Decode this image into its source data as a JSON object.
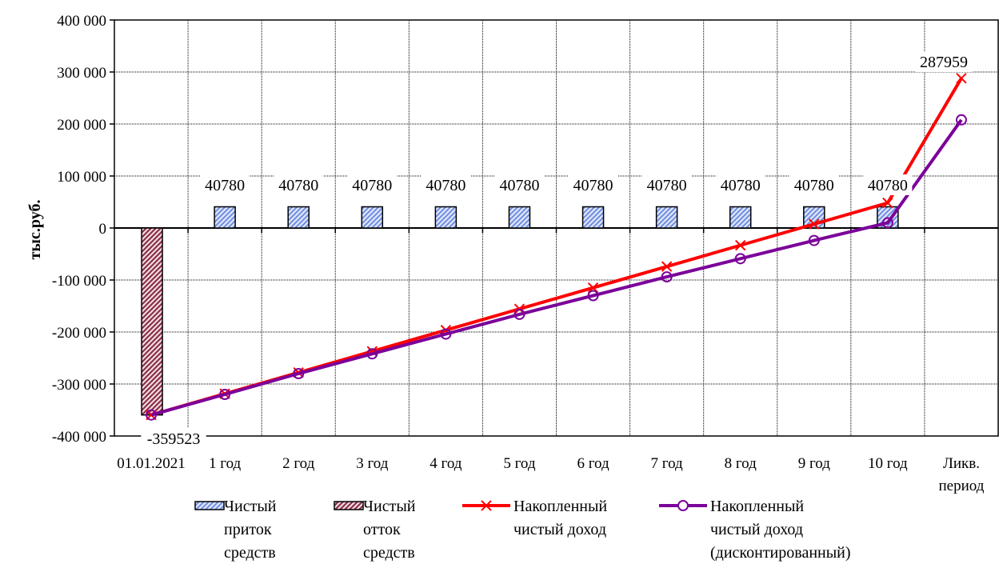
{
  "chart_data": {
    "type": "bar",
    "title": "",
    "ylabel": "тыс.руб.",
    "xlabel": "",
    "ylim": [
      -400000,
      400000
    ],
    "y_ticks": [
      400000,
      300000,
      200000,
      100000,
      0,
      -100000,
      -200000,
      -300000,
      -400000
    ],
    "y_tick_labels": [
      "400 000",
      "300 000",
      "200 000",
      "100 000",
      "0",
      "-100 000",
      "-200 000",
      "-300 000",
      "-400 000"
    ],
    "categories": [
      "01.01.2021",
      "1 год",
      "2 год",
      "3 год",
      "4 год",
      "5 год",
      "6 год",
      "7 год",
      "8 год",
      "9 год",
      "10 год",
      "Ликв. период"
    ],
    "category_lines": [
      [
        "01.01.2021"
      ],
      [
        "1 год"
      ],
      [
        "2 год"
      ],
      [
        "3 год"
      ],
      [
        "4 год"
      ],
      [
        "5 год"
      ],
      [
        "6 год"
      ],
      [
        "7 год"
      ],
      [
        "8 год"
      ],
      [
        "9 год"
      ],
      [
        "10 год"
      ],
      [
        "Ликв.",
        "период"
      ]
    ],
    "grid": true,
    "legend_position": "bottom",
    "series": [
      {
        "name": "Чистый приток средств",
        "name_lines": [
          "Чистый",
          "приток",
          "средств"
        ],
        "kind": "bar",
        "color": "#8ea6e6",
        "values": [
          null,
          40780,
          40780,
          40780,
          40780,
          40780,
          40780,
          40780,
          40780,
          40780,
          40780,
          null
        ],
        "data_labels": [
          "",
          "40780",
          "40780",
          "40780",
          "40780",
          "40780",
          "40780",
          "40780",
          "40780",
          "40780",
          "40780",
          ""
        ]
      },
      {
        "name": "Чистый отток средств",
        "name_lines": [
          "Чистый",
          "отток",
          "средств"
        ],
        "kind": "bar",
        "color": "#8a3048",
        "values": [
          -359523,
          null,
          null,
          null,
          null,
          null,
          null,
          null,
          null,
          null,
          null,
          null
        ],
        "data_labels": [
          "-359523",
          "",
          "",
          "",
          "",
          "",
          "",
          "",
          "",
          "",
          "",
          ""
        ]
      },
      {
        "name": "Накопленный чистый доход",
        "name_lines": [
          "Накопленный",
          "чистый доход"
        ],
        "kind": "line",
        "marker": "x",
        "color": "#ff0000",
        "values": [
          -359523,
          -318743,
          -277963,
          -237183,
          -196403,
          -155623,
          -114843,
          -74063,
          -33283,
          7497,
          48277,
          287959
        ],
        "data_labels": [
          "",
          "",
          "",
          "",
          "",
          "",
          "",
          "",
          "",
          "",
          "",
          "287959"
        ]
      },
      {
        "name": "Накопленный чистый доход (дисконтированный)",
        "name_lines": [
          "Накопленный",
          "чистый доход",
          "(дисконтированный)"
        ],
        "kind": "line",
        "marker": "circle",
        "color": "#7b0099",
        "values": [
          -359523,
          -320000,
          -280000,
          -242000,
          -204000,
          -166000,
          -130000,
          -94000,
          -59000,
          -24000,
          10000,
          208000
        ],
        "data_labels": [
          "",
          "",
          "",
          "",
          "",
          "",
          "",
          "",
          "",
          "",
          "",
          ""
        ]
      }
    ]
  }
}
